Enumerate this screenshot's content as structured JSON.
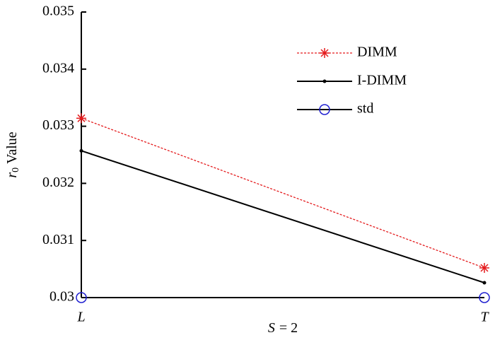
{
  "chart_data": {
    "type": "line",
    "y_label": {
      "symbol": "r",
      "subscript": "0",
      "text": "Value"
    },
    "x_label": {
      "symbol": "S",
      "text": "= 2"
    },
    "categories": [
      "L",
      "T"
    ],
    "series": [
      {
        "name": "DIMM",
        "color": "#e41a1c",
        "line_color": "#e41a1c",
        "dashed": true,
        "marker": "star",
        "values": [
          0.03314,
          0.03052
        ]
      },
      {
        "name": "I-DIMM",
        "color": "#000000",
        "line_color": "#000000",
        "dashed": false,
        "marker": "dot",
        "values": [
          0.03257,
          0.03026
        ]
      },
      {
        "name": "std",
        "color": "#1f1fd0",
        "line_color": "#000000",
        "dashed": false,
        "marker": "circle",
        "values": [
          0.03,
          0.03
        ]
      }
    ],
    "ylim": [
      0.03,
      0.035
    ],
    "yticks": [
      0.03,
      0.031,
      0.032,
      0.033,
      0.034,
      0.035
    ],
    "legend": "upper-right",
    "grid": false
  }
}
